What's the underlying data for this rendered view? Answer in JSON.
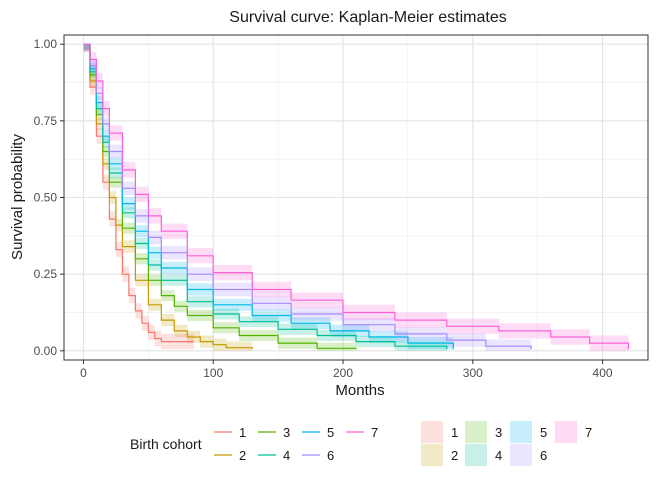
{
  "chart_data": {
    "type": "line",
    "title": "Survival curve: Kaplan-Meier estimates",
    "xlabel": "Months",
    "ylabel": "Survival probability",
    "xlim": [
      -15,
      435
    ],
    "ylim": [
      -0.03,
      1.03
    ],
    "x_ticks": [
      0,
      100,
      200,
      300,
      400
    ],
    "y_ticks": [
      0.0,
      0.25,
      0.5,
      0.75,
      1.0
    ],
    "x_tick_labels": [
      "0",
      "100",
      "200",
      "300",
      "400"
    ],
    "y_tick_labels": [
      "0.00",
      "0.25",
      "0.50",
      "0.75",
      "1.00"
    ],
    "grid": true,
    "legend_position": "bottom",
    "legend_title": "Birth cohort",
    "series": [
      {
        "name": "1",
        "color": "#F8766D",
        "x": [
          0,
          5,
          10,
          15,
          20,
          25,
          30,
          35,
          40,
          45,
          50,
          55,
          60,
          70,
          80,
          85
        ],
        "y": [
          1.0,
          0.86,
          0.7,
          0.55,
          0.43,
          0.33,
          0.25,
          0.18,
          0.13,
          0.09,
          0.06,
          0.04,
          0.03,
          0.03,
          0.03,
          0.03
        ],
        "ci_width": 0.025
      },
      {
        "name": "2",
        "color": "#C49A00",
        "x": [
          0,
          5,
          10,
          15,
          20,
          25,
          30,
          40,
          50,
          60,
          70,
          80,
          90,
          100,
          110,
          130
        ],
        "y": [
          1.0,
          0.88,
          0.74,
          0.61,
          0.5,
          0.41,
          0.34,
          0.23,
          0.15,
          0.1,
          0.065,
          0.045,
          0.03,
          0.02,
          0.01,
          0.005
        ],
        "ci_width": 0.02
      },
      {
        "name": "3",
        "color": "#53B400",
        "x": [
          0,
          5,
          10,
          15,
          20,
          30,
          40,
          50,
          60,
          70,
          80,
          100,
          120,
          150,
          180,
          210
        ],
        "y": [
          1.0,
          0.9,
          0.77,
          0.65,
          0.55,
          0.4,
          0.3,
          0.23,
          0.18,
          0.145,
          0.115,
          0.075,
          0.05,
          0.025,
          0.008,
          0.005
        ],
        "ci_width": 0.018
      },
      {
        "name": "4",
        "color": "#00C094",
        "x": [
          0,
          5,
          10,
          15,
          20,
          30,
          40,
          50,
          60,
          80,
          100,
          120,
          150,
          180,
          210,
          240,
          280
        ],
        "y": [
          1.0,
          0.91,
          0.79,
          0.68,
          0.58,
          0.45,
          0.35,
          0.28,
          0.23,
          0.16,
          0.12,
          0.095,
          0.07,
          0.05,
          0.03,
          0.015,
          0.005
        ],
        "ci_width": 0.018
      },
      {
        "name": "5",
        "color": "#00B6EB",
        "x": [
          0,
          5,
          10,
          15,
          20,
          30,
          40,
          50,
          60,
          80,
          100,
          130,
          160,
          190,
          220,
          250,
          285
        ],
        "y": [
          1.0,
          0.92,
          0.81,
          0.7,
          0.61,
          0.48,
          0.39,
          0.32,
          0.27,
          0.2,
          0.15,
          0.115,
          0.09,
          0.065,
          0.045,
          0.025,
          0.005
        ],
        "ci_width": 0.02
      },
      {
        "name": "6",
        "color": "#A58AFF",
        "x": [
          0,
          5,
          10,
          15,
          20,
          30,
          40,
          50,
          60,
          80,
          100,
          130,
          160,
          200,
          240,
          280,
          310,
          345
        ],
        "y": [
          1.0,
          0.93,
          0.84,
          0.74,
          0.65,
          0.53,
          0.44,
          0.37,
          0.32,
          0.25,
          0.2,
          0.155,
          0.12,
          0.085,
          0.055,
          0.035,
          0.015,
          0.005
        ],
        "ci_width": 0.022
      },
      {
        "name": "7",
        "color": "#FB61D7",
        "x": [
          0,
          5,
          10,
          15,
          20,
          30,
          40,
          50,
          60,
          80,
          100,
          130,
          160,
          200,
          240,
          280,
          320,
          360,
          390,
          420
        ],
        "y": [
          1.0,
          0.95,
          0.88,
          0.79,
          0.71,
          0.59,
          0.51,
          0.44,
          0.39,
          0.31,
          0.255,
          0.2,
          0.165,
          0.125,
          0.1,
          0.08,
          0.065,
          0.045,
          0.025,
          0.005
        ],
        "ci_width": 0.025
      }
    ]
  }
}
